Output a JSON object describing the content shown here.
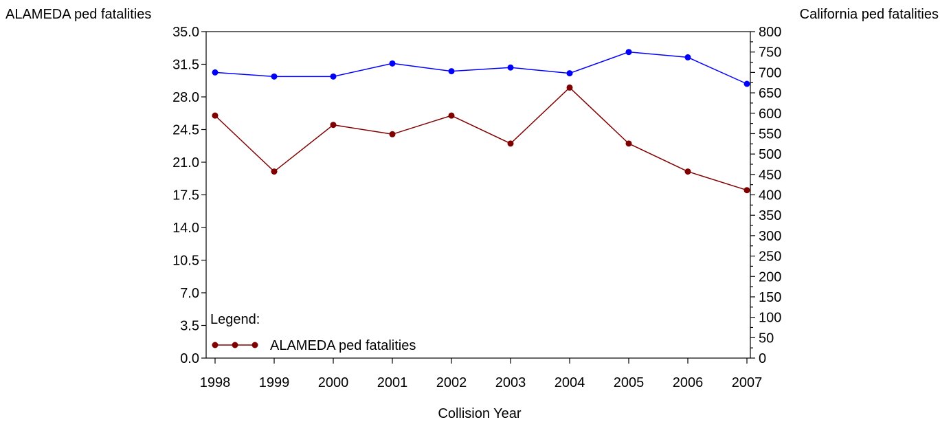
{
  "chart_data": {
    "type": "line",
    "title": "",
    "xlabel": "Collision Year",
    "ylabel_left": "ALAMEDA ped fatalities",
    "ylabel_right": "California ped fatalities",
    "x": [
      1998,
      1999,
      2000,
      2001,
      2002,
      2003,
      2004,
      2005,
      2006,
      2007
    ],
    "x_tick_labels": [
      "1998",
      "1999",
      "2000",
      "2001",
      "2002",
      "2003",
      "2004",
      "2005",
      "2006",
      "2007"
    ],
    "ylim_left": [
      0,
      35
    ],
    "yticks_left": [
      "0.0",
      "3.5",
      "7.0",
      "10.5",
      "14.0",
      "17.5",
      "21.0",
      "24.5",
      "28.0",
      "31.5",
      "35.0"
    ],
    "ylim_right": [
      0,
      800
    ],
    "yticks_right": [
      "0",
      "50",
      "100",
      "150",
      "200",
      "250",
      "300",
      "350",
      "400",
      "450",
      "500",
      "550",
      "600",
      "650",
      "700",
      "750",
      "800"
    ],
    "grid": false,
    "legend": {
      "title": "Legend:",
      "placement": "bottom-left",
      "entries": [
        {
          "label": "ALAMEDA ped fatalities",
          "color": "#800000"
        }
      ]
    },
    "series": [
      {
        "name": "ALAMEDA ped fatalities",
        "axis": "left",
        "color": "#800000",
        "values": [
          26,
          20,
          25,
          24,
          26,
          23,
          29,
          23,
          20,
          18
        ]
      },
      {
        "axis": "right",
        "color": "#0000ff",
        "values": [
          700,
          690,
          690,
          722,
          703,
          712,
          698,
          750,
          737,
          672
        ]
      }
    ]
  }
}
